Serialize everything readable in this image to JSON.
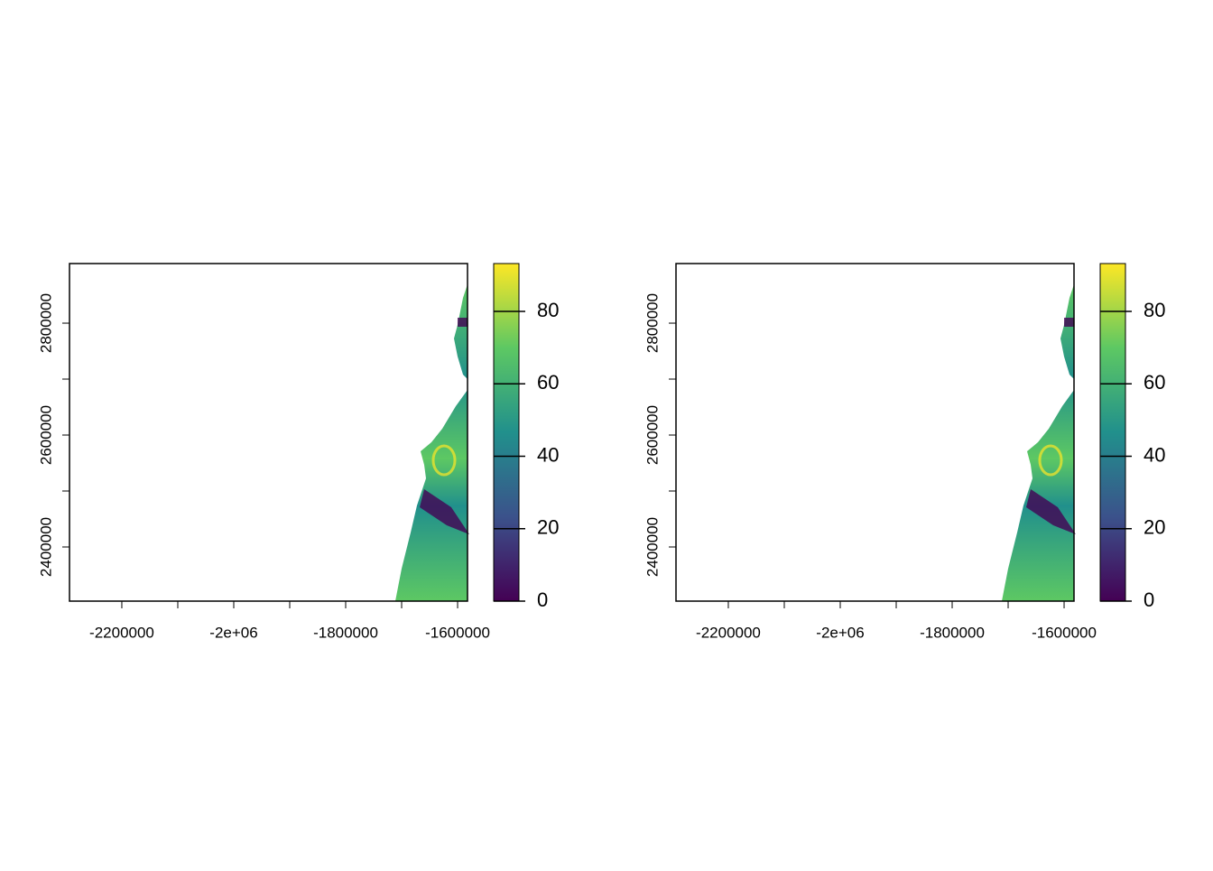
{
  "chart_data": [
    {
      "type": "raster",
      "xlim": [
        -2293500,
        -1582300
      ],
      "ylim": [
        2303200,
        2906500
      ],
      "xticks": [
        -2200000,
        {
          "value": -2100000,
          "label": null
        },
        {
          "value": -2000000,
          "label": "-2e+06"
        },
        {
          "value": -1900000,
          "label": null
        },
        -1800000,
        {
          "value": -1700000,
          "label": null
        },
        -1600000
      ],
      "yticks": [
        2400000,
        {
          "value": 2500000,
          "label": null
        },
        2600000,
        {
          "value": 2700000,
          "label": null
        },
        2800000
      ],
      "colorbar": {
        "zlim": [
          0,
          93.2
        ],
        "ticks": [
          0,
          20,
          40,
          60,
          80
        ],
        "colors": [
          "#440154",
          "#3b528b",
          "#21908c",
          "#5dc863",
          "#fde725"
        ]
      }
    },
    {
      "type": "raster",
      "xlim": [
        -2293500,
        -1582300
      ],
      "ylim": [
        2303200,
        2906500
      ],
      "xticks": [
        -2200000,
        {
          "value": -2100000,
          "label": null
        },
        {
          "value": -2000000,
          "label": "-2e+06"
        },
        {
          "value": -1900000,
          "label": null
        },
        -1800000,
        {
          "value": -1700000,
          "label": null
        },
        -1600000
      ],
      "yticks": [
        2400000,
        {
          "value": 2500000,
          "label": null
        },
        2600000,
        {
          "value": 2700000,
          "label": null
        },
        2800000
      ],
      "colorbar": {
        "zlim": [
          0,
          93.2
        ],
        "ticks": [
          0,
          20,
          40,
          60,
          80
        ],
        "colors": [
          "#440154",
          "#3b528b",
          "#21908c",
          "#5dc863",
          "#fde725"
        ]
      }
    }
  ]
}
